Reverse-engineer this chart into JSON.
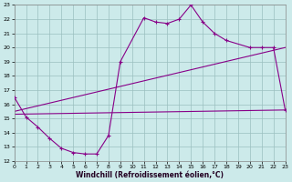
{
  "xlabel": "Windchill (Refroidissement éolien,°C)",
  "bg_color": "#cceaea",
  "grid_color": "#9bbfbf",
  "line_color": "#880088",
  "xlim": [
    0,
    23
  ],
  "ylim": [
    12,
    23
  ],
  "xticks": [
    0,
    1,
    2,
    3,
    4,
    5,
    6,
    7,
    8,
    9,
    10,
    11,
    12,
    13,
    14,
    15,
    16,
    17,
    18,
    19,
    20,
    21,
    22,
    23
  ],
  "yticks": [
    12,
    13,
    14,
    15,
    16,
    17,
    18,
    19,
    20,
    21,
    22,
    23
  ],
  "curve1_x": [
    0,
    1,
    2,
    3,
    4,
    5,
    6,
    7,
    8,
    9,
    11,
    12,
    13,
    14,
    15,
    16,
    17,
    18,
    20,
    21,
    22,
    23
  ],
  "curve1_y": [
    16.5,
    15.1,
    14.4,
    13.6,
    12.9,
    12.6,
    12.5,
    12.5,
    13.8,
    19.0,
    22.1,
    21.8,
    21.7,
    22.0,
    23.0,
    21.8,
    21.0,
    20.5,
    20.0,
    20.0,
    20.0,
    15.6
  ],
  "curve2_x": [
    0,
    23
  ],
  "curve2_y": [
    15.5,
    20.0
  ],
  "curve3_x": [
    0,
    23
  ],
  "curve3_y": [
    15.3,
    15.6
  ]
}
